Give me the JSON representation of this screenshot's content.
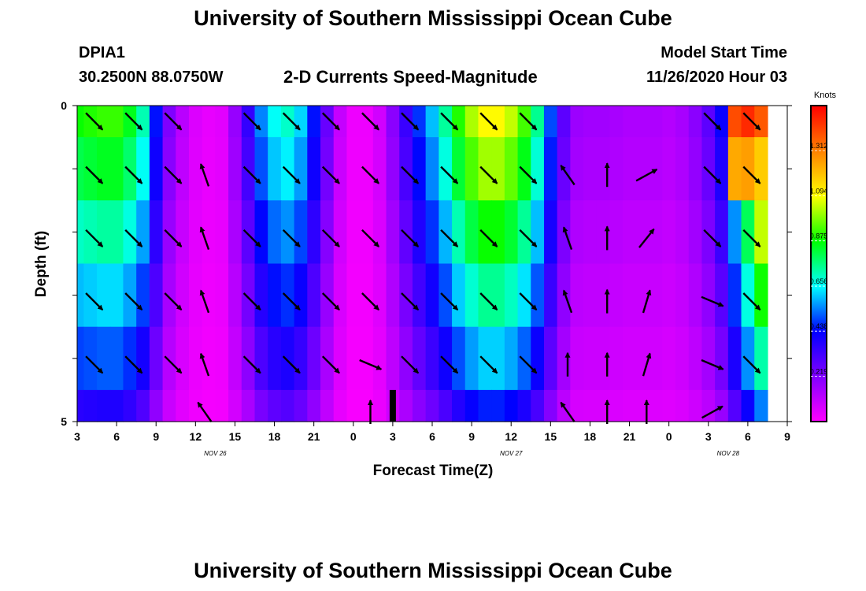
{
  "header": {
    "title_top": "University of Southern Mississippi Ocean Cube",
    "title_bottom": "University of Southern Mississippi Ocean Cube",
    "station_id": "DPIA1",
    "station_coords": "30.2500N 88.0750W",
    "model_start_label": "Model Start Time",
    "model_start_value": "11/26/2020 Hour 03"
  },
  "chart_data": {
    "type": "heatmap",
    "title": "2-D Currents Speed-Magnitude",
    "xlabel": "Forecast Time(Z)",
    "ylabel": "Depth (ft)",
    "x_tick_labels": [
      "3",
      "6",
      "9",
      "12",
      "15",
      "18",
      "21",
      "0",
      "3",
      "6",
      "9",
      "12",
      "15",
      "18",
      "21",
      "0",
      "3",
      "6",
      "9"
    ],
    "date_labels": [
      {
        "text": "NOV  26",
        "tick_index": 3.5
      },
      {
        "text": "NOV  27",
        "tick_index": 11
      },
      {
        "text": "NOV  28",
        "tick_index": 16.5
      }
    ],
    "y_ticks": [
      0,
      1,
      2,
      3,
      4,
      5
    ],
    "y_tick_labels": [
      "0",
      "",
      "",
      "",
      "",
      "5"
    ],
    "ylim": [
      0,
      5
    ],
    "hours": [
      3,
      4,
      5,
      6,
      7,
      8,
      9,
      10,
      11,
      12,
      13,
      14,
      15,
      16,
      17,
      18,
      19,
      20,
      21,
      22,
      23,
      24,
      25,
      26,
      27,
      28,
      29,
      30,
      31,
      32,
      33,
      34,
      35,
      36,
      37,
      38,
      39,
      40,
      41,
      42,
      43,
      44,
      45,
      46,
      47,
      48,
      49,
      50,
      51,
      52,
      53,
      54,
      55
    ],
    "depth_layers": [
      0.25,
      1.0,
      2.0,
      3.0,
      4.0,
      4.75
    ],
    "speed_profile": [
      0.88,
      0.9,
      0.92,
      0.92,
      0.85,
      0.72,
      0.45,
      0.22,
      0.12,
      0.06,
      0.04,
      0.05,
      0.18,
      0.35,
      0.55,
      0.66,
      0.7,
      0.62,
      0.45,
      0.26,
      0.1,
      0.03,
      0.03,
      0.08,
      0.2,
      0.34,
      0.48,
      0.6,
      0.74,
      0.9,
      1.02,
      1.1,
      1.1,
      1.04,
      0.93,
      0.75,
      0.5,
      0.28,
      0.17,
      0.16,
      0.16,
      0.15,
      0.14,
      0.14,
      0.14,
      0.13,
      0.15,
      0.2,
      0.28,
      0.42,
      0.7,
      1.0,
      1.3
    ],
    "depth_factors": [
      1.0,
      0.92,
      0.8,
      0.68,
      0.56,
      0.42
    ],
    "speed_overrides": [
      {
        "row": 0,
        "hours": [
          53,
          54,
          55
        ],
        "values": [
          1.4,
          1.46,
          1.38
        ]
      },
      {
        "row": 1,
        "hours": [
          53,
          54,
          55
        ],
        "values": [
          1.24,
          1.26,
          1.18
        ]
      }
    ],
    "no_data": [
      {
        "hour": 27,
        "depth_from": 4.5,
        "depth_to": 5.0
      }
    ],
    "arrows": {
      "columns": [
        4.3,
        7.3,
        10.3,
        12.7,
        16.3,
        19.3,
        22.3,
        25.3,
        28.3,
        31.3,
        34.3,
        37.3,
        40.3,
        43.3,
        46.3,
        51.3,
        54.3
      ],
      "rows": [
        0.25,
        1.1,
        2.1,
        3.1,
        4.1,
        4.85
      ],
      "direction": [
        "se",
        "se",
        "se",
        "n",
        "se",
        "se",
        "se",
        "se",
        "se",
        "se",
        "se",
        "se",
        "n",
        "n",
        "ne",
        "se",
        "se"
      ],
      "exceptions": [
        {
          "row": 0,
          "col": 3,
          "dir": "none"
        },
        {
          "row": 0,
          "col": 12,
          "dir": "none"
        },
        {
          "row": 0,
          "col": 13,
          "dir": "none"
        },
        {
          "row": 0,
          "col": 14,
          "dir": "none"
        },
        {
          "row": 1,
          "col": 3,
          "dir": "nnw"
        },
        {
          "row": 1,
          "col": 12,
          "dir": "nw"
        },
        {
          "row": 1,
          "col": 13,
          "dir": "n"
        },
        {
          "row": 1,
          "col": 14,
          "dir": "ene"
        },
        {
          "row": 2,
          "col": 3,
          "dir": "nnw"
        },
        {
          "row": 2,
          "col": 12,
          "dir": "nnw"
        },
        {
          "row": 2,
          "col": 13,
          "dir": "n"
        },
        {
          "row": 2,
          "col": 14,
          "dir": "ne"
        },
        {
          "row": 2,
          "col": 15,
          "dir": "se"
        },
        {
          "row": 3,
          "col": 3,
          "dir": "nnw"
        },
        {
          "row": 3,
          "col": 12,
          "dir": "nnw"
        },
        {
          "row": 3,
          "col": 13,
          "dir": "n"
        },
        {
          "row": 3,
          "col": 14,
          "dir": "nne"
        },
        {
          "row": 3,
          "col": 15,
          "dir": "ese"
        },
        {
          "row": 4,
          "col": 3,
          "dir": "nnw"
        },
        {
          "row": 4,
          "col": 7,
          "dir": "ese"
        },
        {
          "row": 4,
          "col": 12,
          "dir": "n"
        },
        {
          "row": 4,
          "col": 13,
          "dir": "n"
        },
        {
          "row": 4,
          "col": 14,
          "dir": "nne"
        },
        {
          "row": 4,
          "col": 15,
          "dir": "ese"
        },
        {
          "row": 5,
          "col": 0,
          "dir": "none"
        },
        {
          "row": 5,
          "col": 1,
          "dir": "none"
        },
        {
          "row": 5,
          "col": 2,
          "dir": "none"
        },
        {
          "row": 5,
          "col": 3,
          "dir": "nw"
        },
        {
          "row": 5,
          "col": 4,
          "dir": "none"
        },
        {
          "row": 5,
          "col": 5,
          "dir": "none"
        },
        {
          "row": 5,
          "col": 6,
          "dir": "none"
        },
        {
          "row": 5,
          "col": 7,
          "dir": "n"
        },
        {
          "row": 5,
          "col": 8,
          "dir": "none"
        },
        {
          "row": 5,
          "col": 9,
          "dir": "none"
        },
        {
          "row": 5,
          "col": 10,
          "dir": "none"
        },
        {
          "row": 5,
          "col": 11,
          "dir": "none"
        },
        {
          "row": 5,
          "col": 12,
          "dir": "nw"
        },
        {
          "row": 5,
          "col": 13,
          "dir": "n"
        },
        {
          "row": 5,
          "col": 14,
          "dir": "n"
        },
        {
          "row": 5,
          "col": 15,
          "dir": "ene"
        },
        {
          "row": 5,
          "col": 16,
          "dir": "none"
        }
      ]
    },
    "colorbar": {
      "unit": "Knots",
      "ticks": [
        0.219,
        0.438,
        0.656,
        0.875,
        1.094,
        1.312
      ],
      "tick_labels": [
        "0.219",
        "0.438",
        "0.656",
        "0.875",
        "1.094",
        "1.312"
      ],
      "range": [
        0,
        1.53
      ]
    }
  }
}
